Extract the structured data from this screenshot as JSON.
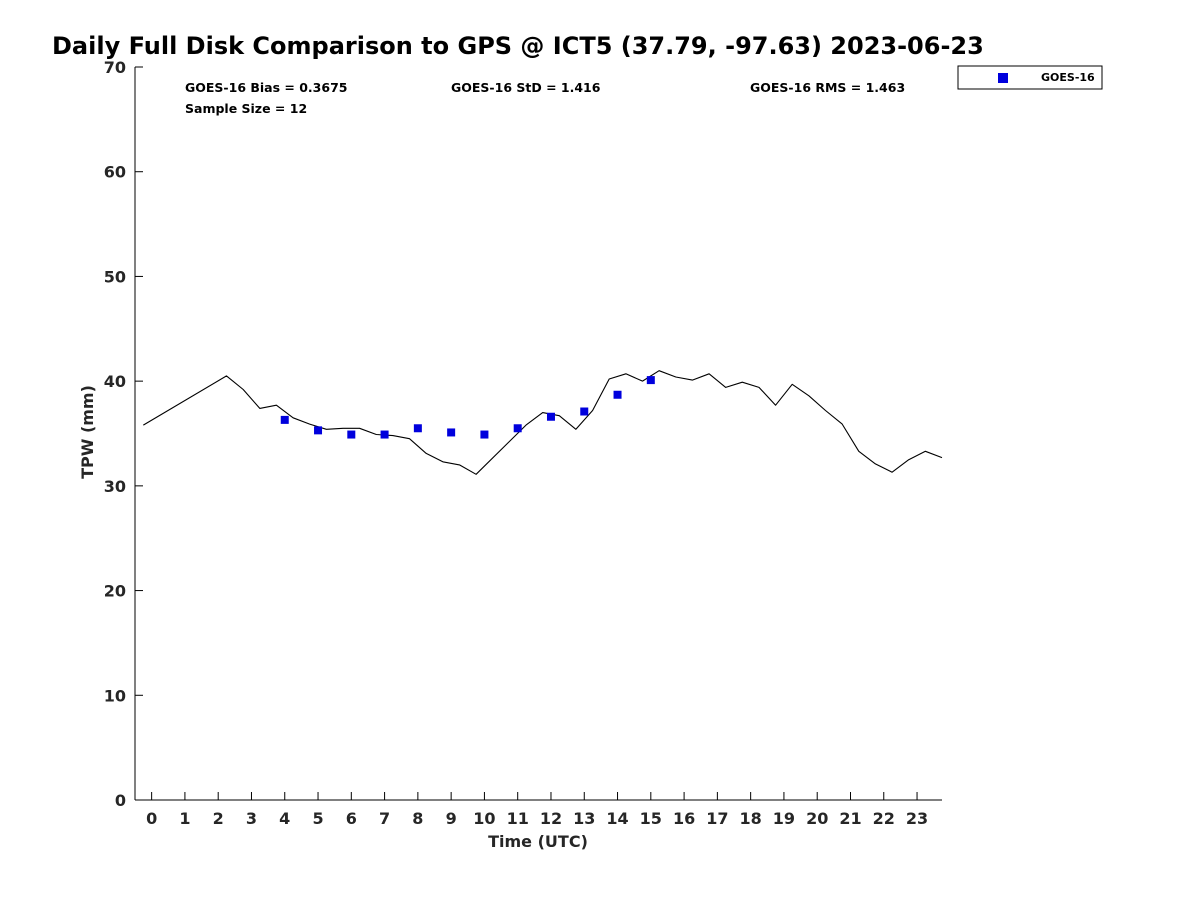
{
  "chart_data": {
    "type": "line",
    "title": "Daily Full Disk Comparison to GPS @ ICT5 (37.79, -97.63) 2023-06-23",
    "xlabel": "Time (UTC)",
    "ylabel": "TPW (mm)",
    "xlim": [
      -0.5,
      23.75
    ],
    "ylim": [
      0,
      70
    ],
    "x_ticks": [
      0,
      1,
      2,
      3,
      4,
      5,
      6,
      7,
      8,
      9,
      10,
      11,
      12,
      13,
      14,
      15,
      16,
      17,
      18,
      19,
      20,
      21,
      22,
      23
    ],
    "y_ticks": [
      0,
      10,
      20,
      30,
      40,
      50,
      60,
      70
    ],
    "grid": false,
    "legend_position": "outside-top-right",
    "stats": [
      {
        "text": "GOES-16 Bias = 0.3675"
      },
      {
        "text": "GOES-16 StD = 1.416"
      },
      {
        "text": "GOES-16 RMS = 1.463"
      },
      {
        "text": "Sample Size = 12"
      }
    ],
    "series": [
      {
        "kind": "line",
        "color": "#000000",
        "x": [
          -0.25,
          2.25,
          2.75,
          3.25,
          3.75,
          4.25,
          4.75,
          5.25,
          5.75,
          6.25,
          6.75,
          7.25,
          7.75,
          8.25,
          8.75,
          9.25,
          9.75,
          11.25,
          11.75,
          12.25,
          12.75,
          13.25,
          13.75,
          14.25,
          14.75,
          15.25,
          15.75,
          16.25,
          16.75,
          17.25,
          17.75,
          18.25,
          18.75,
          19.25,
          19.75,
          20.25,
          20.75,
          21.25,
          21.75,
          22.25,
          22.75,
          23.25,
          23.75
        ],
        "y": [
          35.8,
          40.5,
          39.2,
          37.4,
          37.7,
          36.5,
          35.9,
          35.4,
          35.5,
          35.5,
          34.9,
          34.8,
          34.5,
          33.1,
          32.3,
          32.0,
          31.1,
          35.8,
          37.0,
          36.7,
          35.4,
          37.2,
          40.2,
          40.7,
          40.0,
          41.0,
          40.4,
          40.1,
          40.7,
          39.4,
          39.9,
          39.4,
          37.7,
          39.7,
          38.6,
          37.2,
          35.9,
          33.3,
          32.1,
          31.3,
          32.5,
          33.3,
          32.7
        ]
      },
      {
        "name": "GOES-16",
        "kind": "scatter",
        "marker": "square",
        "color": "#0000dd",
        "x": [
          4,
          5,
          6,
          7,
          8,
          9,
          10,
          11,
          12,
          13,
          14,
          15
        ],
        "y": [
          36.3,
          35.3,
          34.9,
          34.9,
          35.5,
          35.1,
          34.9,
          35.5,
          36.6,
          37.1,
          38.7,
          40.1
        ]
      }
    ]
  }
}
